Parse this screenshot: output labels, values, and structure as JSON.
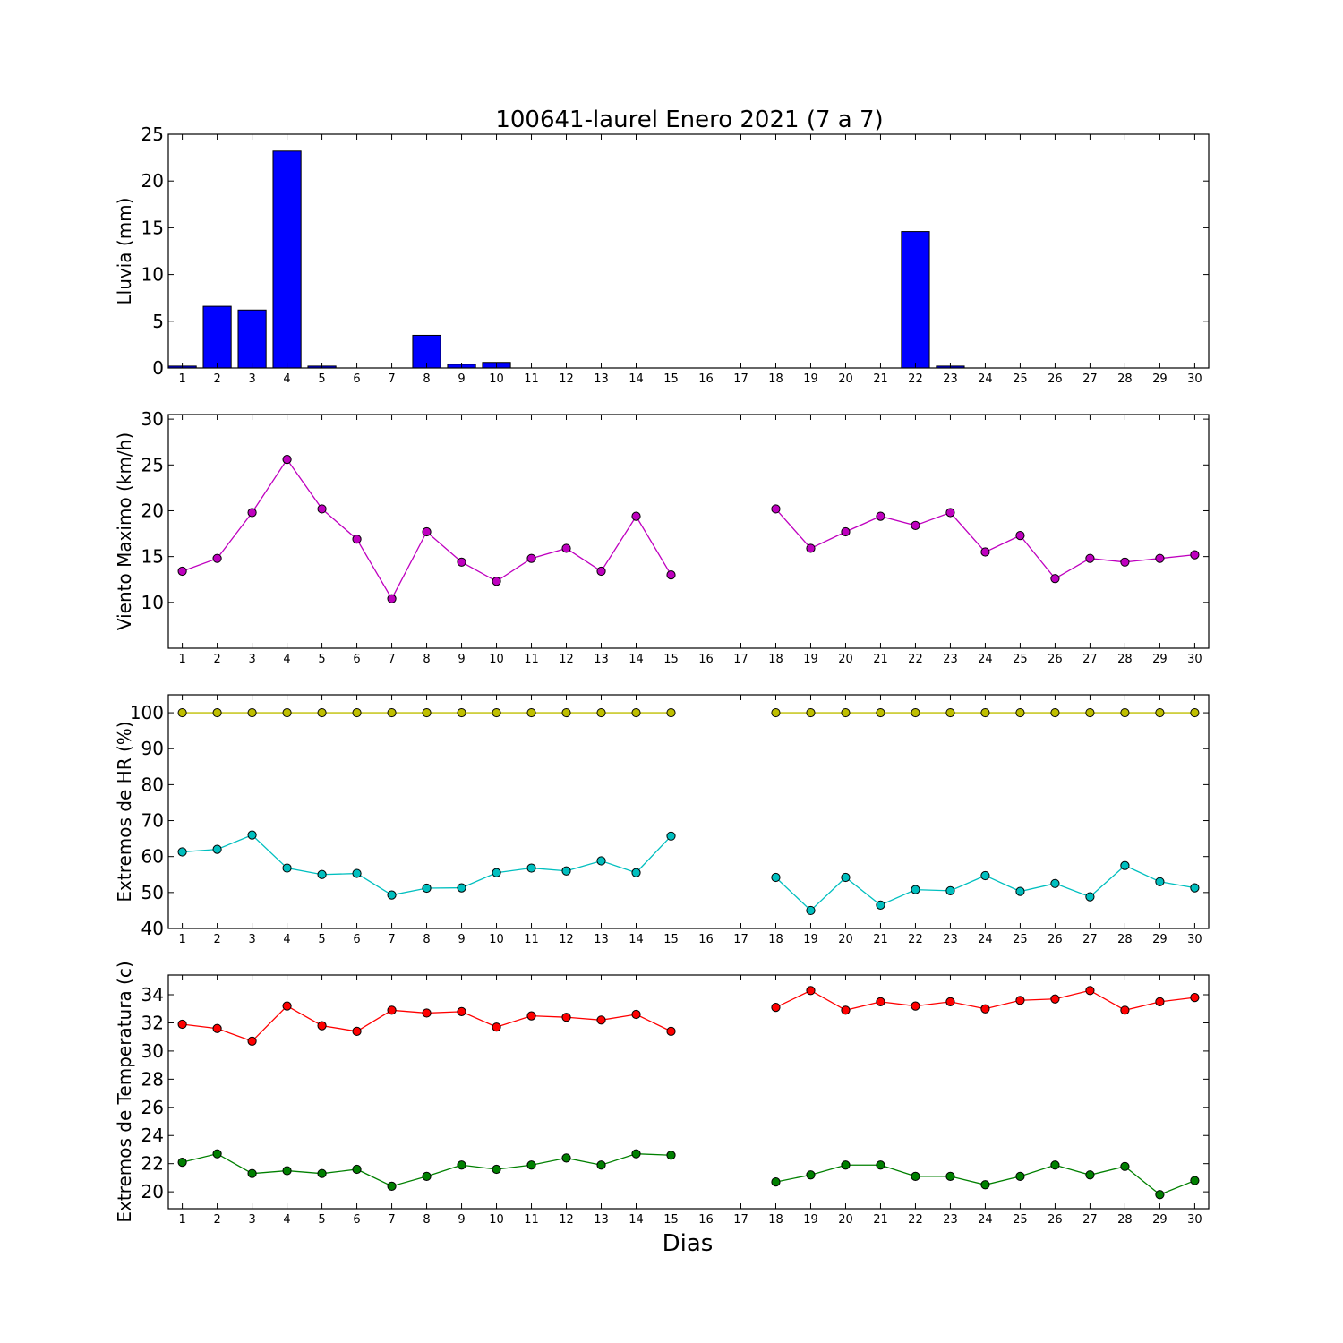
{
  "figure": {
    "title": "100641-laurel Enero 2021  (7 a 7)",
    "xlabel": "Dias"
  },
  "chart_data": [
    {
      "type": "bar",
      "ylabel": "Lluvia (mm)",
      "categories": [
        "1",
        "2",
        "3",
        "4",
        "5",
        "6",
        "7",
        "8",
        "9",
        "10",
        "11",
        "12",
        "13",
        "14",
        "15",
        "16",
        "17",
        "18",
        "19",
        "20",
        "21",
        "22",
        "23",
        "24",
        "25",
        "26",
        "27",
        "28",
        "29",
        "30"
      ],
      "series": [
        {
          "color": "#0000ff",
          "values": [
            0.2,
            6.6,
            6.2,
            23.2,
            0.2,
            0,
            0,
            3.5,
            0.4,
            0.6,
            0,
            0,
            0,
            0,
            0,
            0,
            0,
            0,
            0,
            0,
            0,
            14.6,
            0.2,
            0,
            0,
            0,
            0,
            0,
            0,
            0
          ]
        }
      ],
      "ylim": [
        0,
        25
      ],
      "yticks": [
        0,
        5,
        10,
        15,
        20,
        25
      ]
    },
    {
      "type": "line",
      "ylabel": "Viento Maximo (km/h)",
      "categories": [
        "1",
        "2",
        "3",
        "4",
        "5",
        "6",
        "7",
        "8",
        "9",
        "10",
        "11",
        "12",
        "13",
        "14",
        "15",
        "16",
        "17",
        "18",
        "19",
        "20",
        "21",
        "22",
        "23",
        "24",
        "25",
        "26",
        "27",
        "28",
        "29",
        "30"
      ],
      "series": [
        {
          "color": "#bf00bf",
          "values": [
            13.4,
            14.8,
            19.8,
            25.6,
            20.2,
            16.9,
            10.4,
            17.7,
            14.4,
            12.3,
            14.8,
            15.9,
            13.4,
            19.4,
            13.0,
            null,
            null,
            20.2,
            15.9,
            17.7,
            19.4,
            18.4,
            19.8,
            15.5,
            17.3,
            12.6,
            14.8,
            14.4,
            14.8,
            15.2
          ]
        }
      ],
      "ylim": [
        5,
        30.5
      ],
      "yticks": [
        10,
        15,
        20,
        25,
        30
      ]
    },
    {
      "type": "line",
      "ylabel": "Extremos de HR (%)",
      "categories": [
        "1",
        "2",
        "3",
        "4",
        "5",
        "6",
        "7",
        "8",
        "9",
        "10",
        "11",
        "12",
        "13",
        "14",
        "15",
        "16",
        "17",
        "18",
        "19",
        "20",
        "21",
        "22",
        "23",
        "24",
        "25",
        "26",
        "27",
        "28",
        "29",
        "30"
      ],
      "series": [
        {
          "color": "#bfbf00",
          "values": [
            100,
            100,
            100,
            100,
            100,
            100,
            100,
            100,
            100,
            100,
            100,
            100,
            100,
            100,
            100,
            null,
            null,
            100,
            100,
            100,
            100,
            100,
            100,
            100,
            100,
            100,
            100,
            100,
            100,
            100
          ]
        },
        {
          "color": "#00bfbf",
          "values": [
            61.3,
            62.0,
            66.0,
            56.8,
            55.0,
            55.3,
            49.3,
            51.2,
            51.3,
            55.5,
            56.8,
            56.0,
            58.8,
            55.5,
            65.7,
            null,
            null,
            54.2,
            45.0,
            54.2,
            46.5,
            50.8,
            50.5,
            54.7,
            50.3,
            52.5,
            48.8,
            57.5,
            53.0,
            51.3
          ]
        }
      ],
      "ylim": [
        40,
        105
      ],
      "yticks": [
        40,
        50,
        60,
        70,
        80,
        90,
        100
      ]
    },
    {
      "type": "line",
      "ylabel": "Extremos de Temperatura (c)",
      "categories": [
        "1",
        "2",
        "3",
        "4",
        "5",
        "6",
        "7",
        "8",
        "9",
        "10",
        "11",
        "12",
        "13",
        "14",
        "15",
        "16",
        "17",
        "18",
        "19",
        "20",
        "21",
        "22",
        "23",
        "24",
        "25",
        "26",
        "27",
        "28",
        "29",
        "30"
      ],
      "series": [
        {
          "color": "#ff0000",
          "values": [
            31.9,
            31.6,
            30.7,
            33.2,
            31.8,
            31.4,
            32.9,
            32.7,
            32.8,
            31.7,
            32.5,
            32.4,
            32.2,
            32.6,
            31.4,
            null,
            null,
            33.1,
            34.3,
            32.9,
            33.5,
            33.2,
            33.5,
            33.0,
            33.6,
            33.7,
            34.3,
            32.9,
            33.5,
            33.8
          ]
        },
        {
          "color": "#008000",
          "values": [
            22.1,
            22.7,
            21.3,
            21.5,
            21.3,
            21.6,
            20.4,
            21.1,
            21.9,
            21.6,
            21.9,
            22.4,
            21.9,
            22.7,
            22.6,
            null,
            null,
            20.7,
            21.2,
            21.9,
            21.9,
            21.1,
            21.1,
            20.5,
            21.1,
            21.9,
            21.2,
            21.8,
            19.8,
            20.8
          ]
        }
      ],
      "ylim": [
        18.8,
        35.4
      ],
      "yticks": [
        20,
        22,
        24,
        26,
        28,
        30,
        32,
        34
      ]
    }
  ]
}
